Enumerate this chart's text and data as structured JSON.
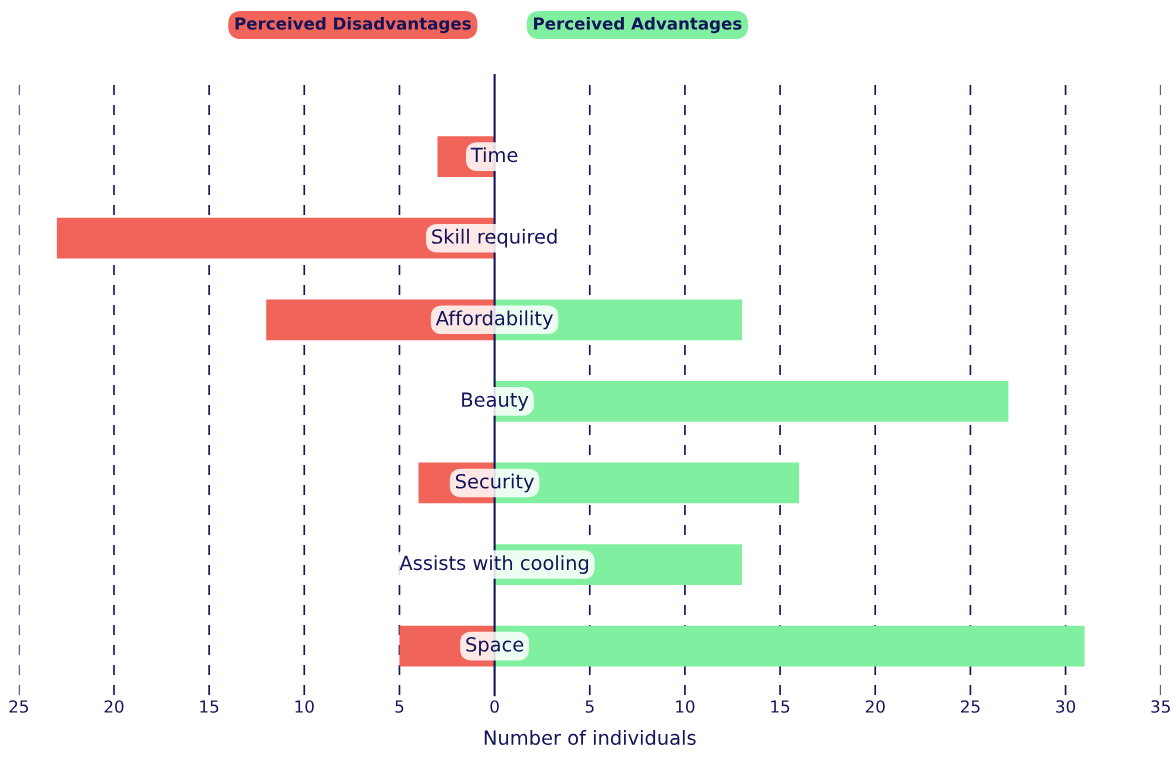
{
  "chart_data": {
    "type": "bar",
    "orientation": "horizontal",
    "categories": [
      "Time",
      "Skill required",
      "Affordability",
      "Beauty",
      "Security",
      "Assists with cooling",
      "Space"
    ],
    "series": [
      {
        "name": "Perceived Disadvantages",
        "color": "#f0645a",
        "values": [
          -3,
          -23,
          -12,
          null,
          -4,
          null,
          -5
        ]
      },
      {
        "name": "Perceived Advantages",
        "color": "#80f0a0",
        "values": [
          null,
          null,
          13,
          27,
          16,
          13,
          31
        ]
      }
    ],
    "xlabel": "Number of individuals",
    "xlim": [
      -25,
      35
    ],
    "xticks": [
      {
        "value": -25,
        "label": "25"
      },
      {
        "value": -20,
        "label": "20"
      },
      {
        "value": -15,
        "label": "15"
      },
      {
        "value": -10,
        "label": "10"
      },
      {
        "value": -5,
        "label": "5"
      },
      0,
      5,
      10,
      15,
      20,
      25,
      30,
      35
    ],
    "grid": "x",
    "line_style": "dashed",
    "legend": "top",
    "tick_labels": "x"
  }
}
